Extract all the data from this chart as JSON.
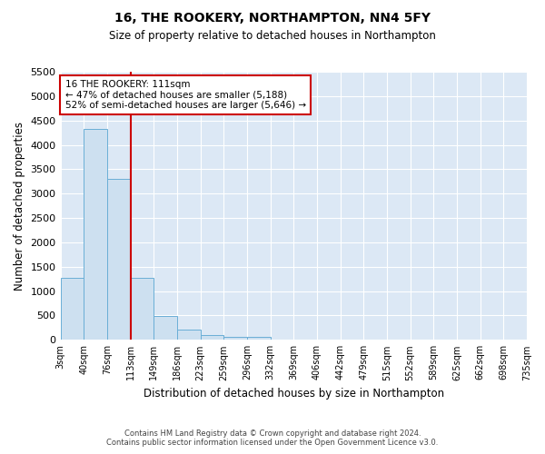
{
  "title": "16, THE ROOKERY, NORTHAMPTON, NN4 5FY",
  "subtitle": "Size of property relative to detached houses in Northampton",
  "xlabel": "Distribution of detached houses by size in Northampton",
  "ylabel": "Number of detached properties",
  "bar_values": [
    1270,
    4320,
    3300,
    1280,
    490,
    210,
    90,
    70,
    60,
    0,
    0,
    0,
    0,
    0,
    0,
    0,
    0,
    0,
    0,
    0
  ],
  "bar_labels": [
    "3sqm",
    "40sqm",
    "76sqm",
    "113sqm",
    "149sqm",
    "186sqm",
    "223sqm",
    "259sqm",
    "296sqm",
    "332sqm",
    "369sqm",
    "406sqm",
    "442sqm",
    "479sqm",
    "515sqm",
    "552sqm",
    "589sqm",
    "625sqm",
    "662sqm",
    "698sqm",
    "735sqm"
  ],
  "bar_color": "#cde0f0",
  "bar_edge_color": "#6aaed6",
  "vline_color": "#cc0000",
  "ylim": [
    0,
    5500
  ],
  "yticks": [
    0,
    500,
    1000,
    1500,
    2000,
    2500,
    3000,
    3500,
    4000,
    4500,
    5000,
    5500
  ],
  "annotation_title": "16 THE ROOKERY: 111sqm",
  "annotation_line1": "← 47% of detached houses are smaller (5,188)",
  "annotation_line2": "52% of semi-detached houses are larger (5,646) →",
  "annotation_box_color": "#cc0000",
  "bg_color": "#dce8f5",
  "footer1": "Contains HM Land Registry data © Crown copyright and database right 2024.",
  "footer2": "Contains public sector information licensed under the Open Government Licence v3.0."
}
